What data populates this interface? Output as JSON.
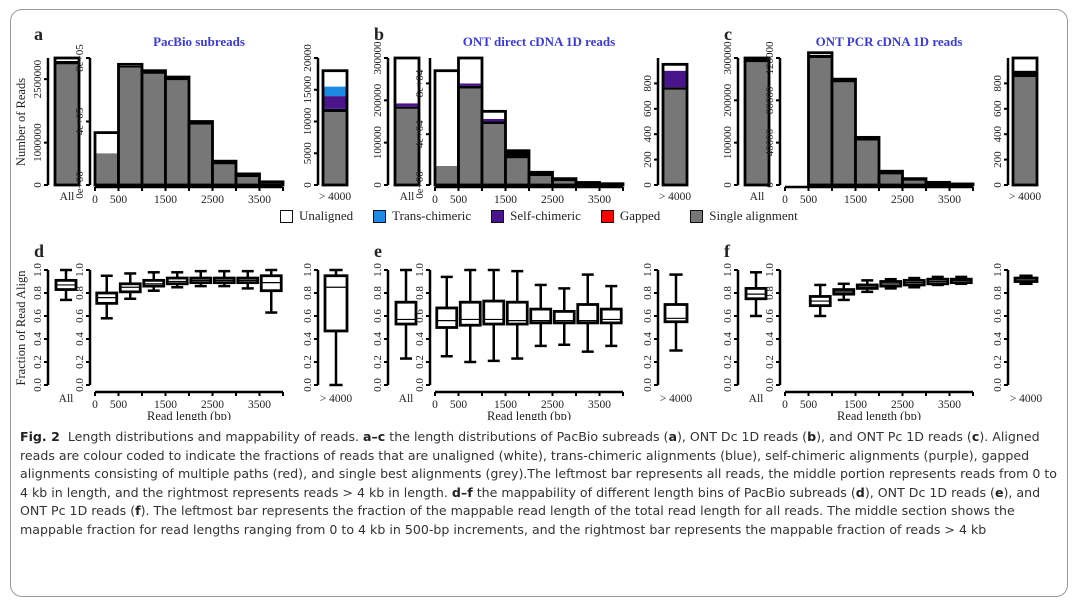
{
  "figure": {
    "panel_labels": [
      "a",
      "b",
      "c",
      "d",
      "e",
      "f"
    ],
    "legend": [
      {
        "label": "Unaligned",
        "color": "#ffffff"
      },
      {
        "label": "Trans-chimeric",
        "color": "#1e88e5"
      },
      {
        "label": "Self-chimeric",
        "color": "#4a148c"
      },
      {
        "label": "Gapped",
        "color": "#ff0000"
      },
      {
        "label": "Single alignment",
        "color": "#777777"
      }
    ],
    "colors": {
      "single": "#777777",
      "unaligned": "#ffffff",
      "trans": "#1e88e5",
      "self": "#4a148c",
      "gapped": "#ff0000",
      "title": "#3b3bdc"
    }
  },
  "caption": {
    "fig_label": "Fig. 2",
    "text_html": "Length distributions and mappability of reads. <b>a–c</b> the length distributions of PacBio subreads (<b>a</b>), ONT Dc 1D reads (<b>b</b>), and ONT Pc 1D reads (<b>c</b>). Aligned reads are colour coded to indicate the fractions of reads that are unaligned (white), trans-chimeric alignments (blue), self-chimeric alignments (purple), gapped alignments consisting of multiple paths (red), and single best alignments (grey).The leftmost bar represents all reads, the middle portion represents reads from 0 to 4 kb in length, and the rightmost represents reads &gt; 4 kb in length. <b>d–f</b> the mappability of different length bins of PacBio subreads (<b>d</b>), ONT Dc 1D reads (<b>e</b>), and ONT Pc 1D reads (<b>f</b>). The leftmost bar represents the fraction of the mappable read length of the total read length for all reads. The middle section shows the mappable fraction for read lengths ranging from 0 to 4 kb in 500-bp increments, and the rightmost bar represents the mappable fraction of reads &gt; 4 kb"
  },
  "chart_data": [
    {
      "panel": "a",
      "type": "bar",
      "title": "PacBio subreads",
      "ylabel": "Number of Reads",
      "xlabel": "",
      "stack_order": [
        "single",
        "gapped",
        "self",
        "trans",
        "unaligned"
      ],
      "all": {
        "label": "All",
        "ylim": [
          0,
          3000000
        ],
        "yticks": [
          0,
          1000000,
          2500000
        ],
        "ytick_labels": [
          "0",
          "1000000",
          "2500000"
        ],
        "stack": {
          "single": 2850000,
          "gapped": 80000,
          "self": 0,
          "trans": 0,
          "unaligned": 70000
        }
      },
      "bins": {
        "categories": [
          "0-500",
          "500-1000",
          "1000-1500",
          "1500-2000",
          "2000-2500",
          "2500-3000",
          "3000-3500",
          "3500-4000"
        ],
        "xticks": [
          0,
          500,
          1500,
          2500,
          3500
        ],
        "ylim": [
          0,
          800000
        ],
        "yticks": [
          0,
          400000,
          800000
        ],
        "ytick_labels": [
          "0e+00",
          "4e+05",
          "8e+05"
        ],
        "single": [
          200000,
          740000,
          700000,
          660000,
          380000,
          130000,
          50000,
          10000
        ],
        "gapped": [
          0,
          10000,
          20000,
          20000,
          20000,
          20000,
          20000,
          10000
        ],
        "self": [
          0,
          0,
          0,
          0,
          0,
          0,
          0,
          0
        ],
        "trans": [
          0,
          0,
          0,
          0,
          0,
          0,
          0,
          0
        ],
        "unaligned": [
          130000,
          10000,
          0,
          0,
          0,
          0,
          0,
          0
        ]
      },
      "over": {
        "label": "> 4000",
        "ylim": [
          0,
          20000
        ],
        "yticks": [
          0,
          5000,
          10000,
          15000,
          20000
        ],
        "ytick_labels": [
          "0",
          "5000",
          "10000",
          "15000",
          "20000"
        ],
        "stack": {
          "single": 11500,
          "gapped": 500,
          "self": 2000,
          "trans": 1500,
          "unaligned": 2500
        }
      }
    },
    {
      "panel": "b",
      "type": "bar",
      "title": "ONT direct cDNA 1D reads",
      "ylabel": "",
      "xlabel": "",
      "stack_order": [
        "single",
        "gapped",
        "self",
        "trans",
        "unaligned"
      ],
      "all": {
        "label": "All",
        "ylim": [
          0,
          300000
        ],
        "yticks": [
          0,
          100000,
          200000,
          300000
        ],
        "ytick_labels": [
          "0",
          "100000",
          "200000",
          "300000"
        ],
        "stack": {
          "single": 180000,
          "gapped": 5000,
          "self": 8000,
          "trans": 0,
          "unaligned": 107000
        }
      },
      "bins": {
        "categories": [
          "0-500",
          "500-1000",
          "1000-1500",
          "1500-2000",
          "2000-2500",
          "2500-3000",
          "3000-3500",
          "3500-4000"
        ],
        "xticks": [
          0,
          500,
          1500,
          2500,
          3500
        ],
        "ylim": [
          0,
          100000
        ],
        "yticks": [
          0,
          40000,
          80000
        ],
        "ytick_labels": [
          "0e+00",
          "4e+04",
          "8e+04"
        ],
        "single": [
          15000,
          76000,
          48000,
          21000,
          7000,
          3000,
          1000,
          0
        ],
        "gapped": [
          0,
          2000,
          2000,
          6000,
          3000,
          2000,
          1000,
          1000
        ],
        "self": [
          0,
          2000,
          2000,
          0,
          0,
          0,
          0,
          0
        ],
        "trans": [
          0,
          0,
          0,
          0,
          0,
          0,
          0,
          0
        ],
        "unaligned": [
          75000,
          20000,
          6000,
          0,
          0,
          0,
          0,
          0
        ]
      },
      "over": {
        "label": "> 4000",
        "ylim": [
          0,
          1000
        ],
        "yticks": [
          0,
          200,
          400,
          600,
          800
        ],
        "ytick_labels": [
          "0",
          "200",
          "400",
          "600",
          "800"
        ],
        "stack": {
          "single": 750,
          "gapped": 20,
          "self": 130,
          "trans": 0,
          "unaligned": 50
        }
      }
    },
    {
      "panel": "c",
      "type": "bar",
      "title": "ONT PCR cDNA 1D reads",
      "ylabel": "",
      "xlabel": "",
      "stack_order": [
        "single",
        "gapped",
        "self",
        "trans",
        "unaligned"
      ],
      "all": {
        "label": "All",
        "ylim": [
          0,
          300000
        ],
        "yticks": [
          0,
          100000,
          200000,
          300000
        ],
        "ytick_labels": [
          "0",
          "100000",
          "200000",
          "300000"
        ],
        "stack": {
          "single": 290000,
          "gapped": 8000,
          "self": 0,
          "trans": 0,
          "unaligned": 2000
        }
      },
      "bins": {
        "categories": [
          "0-500",
          "500-1000",
          "1000-1500",
          "1500-2000",
          "2000-2500",
          "2500-3000",
          "3000-3500",
          "3500-4000"
        ],
        "xticks": [
          0,
          500,
          1500,
          2500,
          3500
        ],
        "ylim": [
          0,
          120000
        ],
        "yticks": [
          0,
          40000,
          80000,
          120000
        ],
        "ytick_labels": [
          "0",
          "40000",
          "80000",
          "120000"
        ],
        "single": [
          0,
          120000,
          97000,
          42000,
          10000,
          4000,
          1000,
          0
        ],
        "gapped": [
          0,
          3000,
          3000,
          3000,
          3000,
          2000,
          1500,
          1000
        ],
        "self": [
          0,
          0,
          0,
          0,
          0,
          0,
          0,
          0
        ],
        "trans": [
          0,
          0,
          0,
          0,
          0,
          0,
          0,
          0
        ],
        "unaligned": [
          0,
          2000,
          0,
          0,
          0,
          0,
          0,
          0
        ]
      },
      "over": {
        "label": "> 4000",
        "ylim": [
          0,
          1000
        ],
        "yticks": [
          0,
          200,
          400,
          600,
          800
        ],
        "ytick_labels": [
          "0",
          "200",
          "400",
          "600",
          "800"
        ],
        "stack": {
          "single": 850,
          "gapped": 50,
          "self": 0,
          "trans": 0,
          "unaligned": 100
        }
      }
    },
    {
      "panel": "d",
      "type": "box",
      "ylabel": "Fraction of Read Align",
      "xlabel": "Read length (bp)",
      "ylim": [
        0,
        1
      ],
      "yticks": [
        0,
        0.2,
        0.4,
        0.6,
        0.8,
        1.0
      ],
      "ytick_labels": [
        "0.0",
        "0.2",
        "0.4",
        "0.6",
        "0.8",
        "1.0"
      ],
      "xticks": [
        0,
        500,
        1500,
        2500,
        3500
      ],
      "all": {
        "label": "All",
        "min": 0.74,
        "q1": 0.83,
        "median": 0.87,
        "q3": 0.91,
        "max": 1.0
      },
      "bins": {
        "categories": [
          "0-500",
          "500-1000",
          "1000-1500",
          "1500-2000",
          "2000-2500",
          "2500-3000",
          "3000-3500",
          "3500-4000"
        ],
        "boxes": [
          {
            "min": 0.58,
            "q1": 0.71,
            "median": 0.76,
            "q3": 0.8,
            "max": 0.95
          },
          {
            "min": 0.75,
            "q1": 0.81,
            "median": 0.85,
            "q3": 0.88,
            "max": 0.97
          },
          {
            "min": 0.82,
            "q1": 0.86,
            "median": 0.88,
            "q3": 0.91,
            "max": 0.98
          },
          {
            "min": 0.85,
            "q1": 0.88,
            "median": 0.9,
            "q3": 0.93,
            "max": 0.98
          },
          {
            "min": 0.86,
            "q1": 0.89,
            "median": 0.91,
            "q3": 0.93,
            "max": 0.99
          },
          {
            "min": 0.86,
            "q1": 0.89,
            "median": 0.91,
            "q3": 0.93,
            "max": 0.99
          },
          {
            "min": 0.84,
            "q1": 0.89,
            "median": 0.91,
            "q3": 0.93,
            "max": 0.99
          },
          {
            "min": 0.63,
            "q1": 0.82,
            "median": 0.89,
            "q3": 0.95,
            "max": 1.0
          }
        ]
      },
      "over": {
        "label": "> 4000",
        "min": 0.0,
        "q1": 0.47,
        "median": 0.85,
        "q3": 0.95,
        "max": 1.0
      }
    },
    {
      "panel": "e",
      "type": "box",
      "ylabel": "",
      "xlabel": "Read length (bp)",
      "ylim": [
        0,
        1
      ],
      "yticks": [
        0,
        0.2,
        0.4,
        0.6,
        0.8,
        1.0
      ],
      "ytick_labels": [
        "0.0",
        "0.2",
        "0.4",
        "0.6",
        "0.8",
        "1.0"
      ],
      "xticks": [
        0,
        500,
        1500,
        2500,
        3500
      ],
      "all": {
        "label": "All",
        "min": 0.23,
        "q1": 0.53,
        "median": 0.57,
        "q3": 0.72,
        "max": 1.0
      },
      "bins": {
        "categories": [
          "0-500",
          "500-1000",
          "1000-1500",
          "1500-2000",
          "2000-2500",
          "2500-3000",
          "3000-3500",
          "3500-4000"
        ],
        "boxes": [
          {
            "min": 0.25,
            "q1": 0.5,
            "median": 0.56,
            "q3": 0.67,
            "max": 0.94
          },
          {
            "min": 0.2,
            "q1": 0.52,
            "median": 0.57,
            "q3": 0.72,
            "max": 1.0
          },
          {
            "min": 0.21,
            "q1": 0.53,
            "median": 0.57,
            "q3": 0.73,
            "max": 1.0
          },
          {
            "min": 0.23,
            "q1": 0.53,
            "median": 0.56,
            "q3": 0.72,
            "max": 0.99
          },
          {
            "min": 0.34,
            "q1": 0.54,
            "median": 0.56,
            "q3": 0.66,
            "max": 0.87
          },
          {
            "min": 0.35,
            "q1": 0.54,
            "median": 0.56,
            "q3": 0.64,
            "max": 0.84
          },
          {
            "min": 0.29,
            "q1": 0.54,
            "median": 0.56,
            "q3": 0.7,
            "max": 0.96
          },
          {
            "min": 0.34,
            "q1": 0.54,
            "median": 0.57,
            "q3": 0.66,
            "max": 0.86
          }
        ]
      },
      "over": {
        "label": "> 4000",
        "min": 0.3,
        "q1": 0.55,
        "median": 0.58,
        "q3": 0.7,
        "max": 0.96
      }
    },
    {
      "panel": "f",
      "type": "box",
      "ylabel": "",
      "xlabel": "Read length (bp)",
      "ylim": [
        0,
        1
      ],
      "yticks": [
        0,
        0.2,
        0.4,
        0.6,
        0.8,
        1.0
      ],
      "ytick_labels": [
        "0.0",
        "0.2",
        "0.4",
        "0.6",
        "0.8",
        "1.0"
      ],
      "xticks": [
        0,
        500,
        1500,
        2500,
        3500
      ],
      "all": {
        "label": "All",
        "min": 0.6,
        "q1": 0.75,
        "median": 0.79,
        "q3": 0.84,
        "max": 0.98
      },
      "bins": {
        "categories": [
          "0-500",
          "500-1000",
          "1000-1500",
          "1500-2000",
          "2000-2500",
          "2500-3000",
          "3000-3500",
          "3500-4000"
        ],
        "boxes": [
          null,
          {
            "min": 0.6,
            "q1": 0.69,
            "median": 0.73,
            "q3": 0.77,
            "max": 0.87
          },
          {
            "min": 0.74,
            "q1": 0.79,
            "median": 0.81,
            "q3": 0.83,
            "max": 0.88
          },
          {
            "min": 0.81,
            "q1": 0.84,
            "median": 0.85,
            "q3": 0.87,
            "max": 0.91
          },
          {
            "min": 0.84,
            "q1": 0.86,
            "median": 0.88,
            "q3": 0.9,
            "max": 0.92
          },
          {
            "min": 0.85,
            "q1": 0.87,
            "median": 0.89,
            "q3": 0.91,
            "max": 0.93
          },
          {
            "min": 0.87,
            "q1": 0.88,
            "median": 0.9,
            "q3": 0.92,
            "max": 0.94
          },
          {
            "min": 0.88,
            "q1": 0.89,
            "median": 0.91,
            "q3": 0.92,
            "max": 0.94
          }
        ]
      },
      "over": {
        "label": "> 4000",
        "min": 0.88,
        "q1": 0.9,
        "median": 0.92,
        "q3": 0.93,
        "max": 0.95
      }
    }
  ]
}
